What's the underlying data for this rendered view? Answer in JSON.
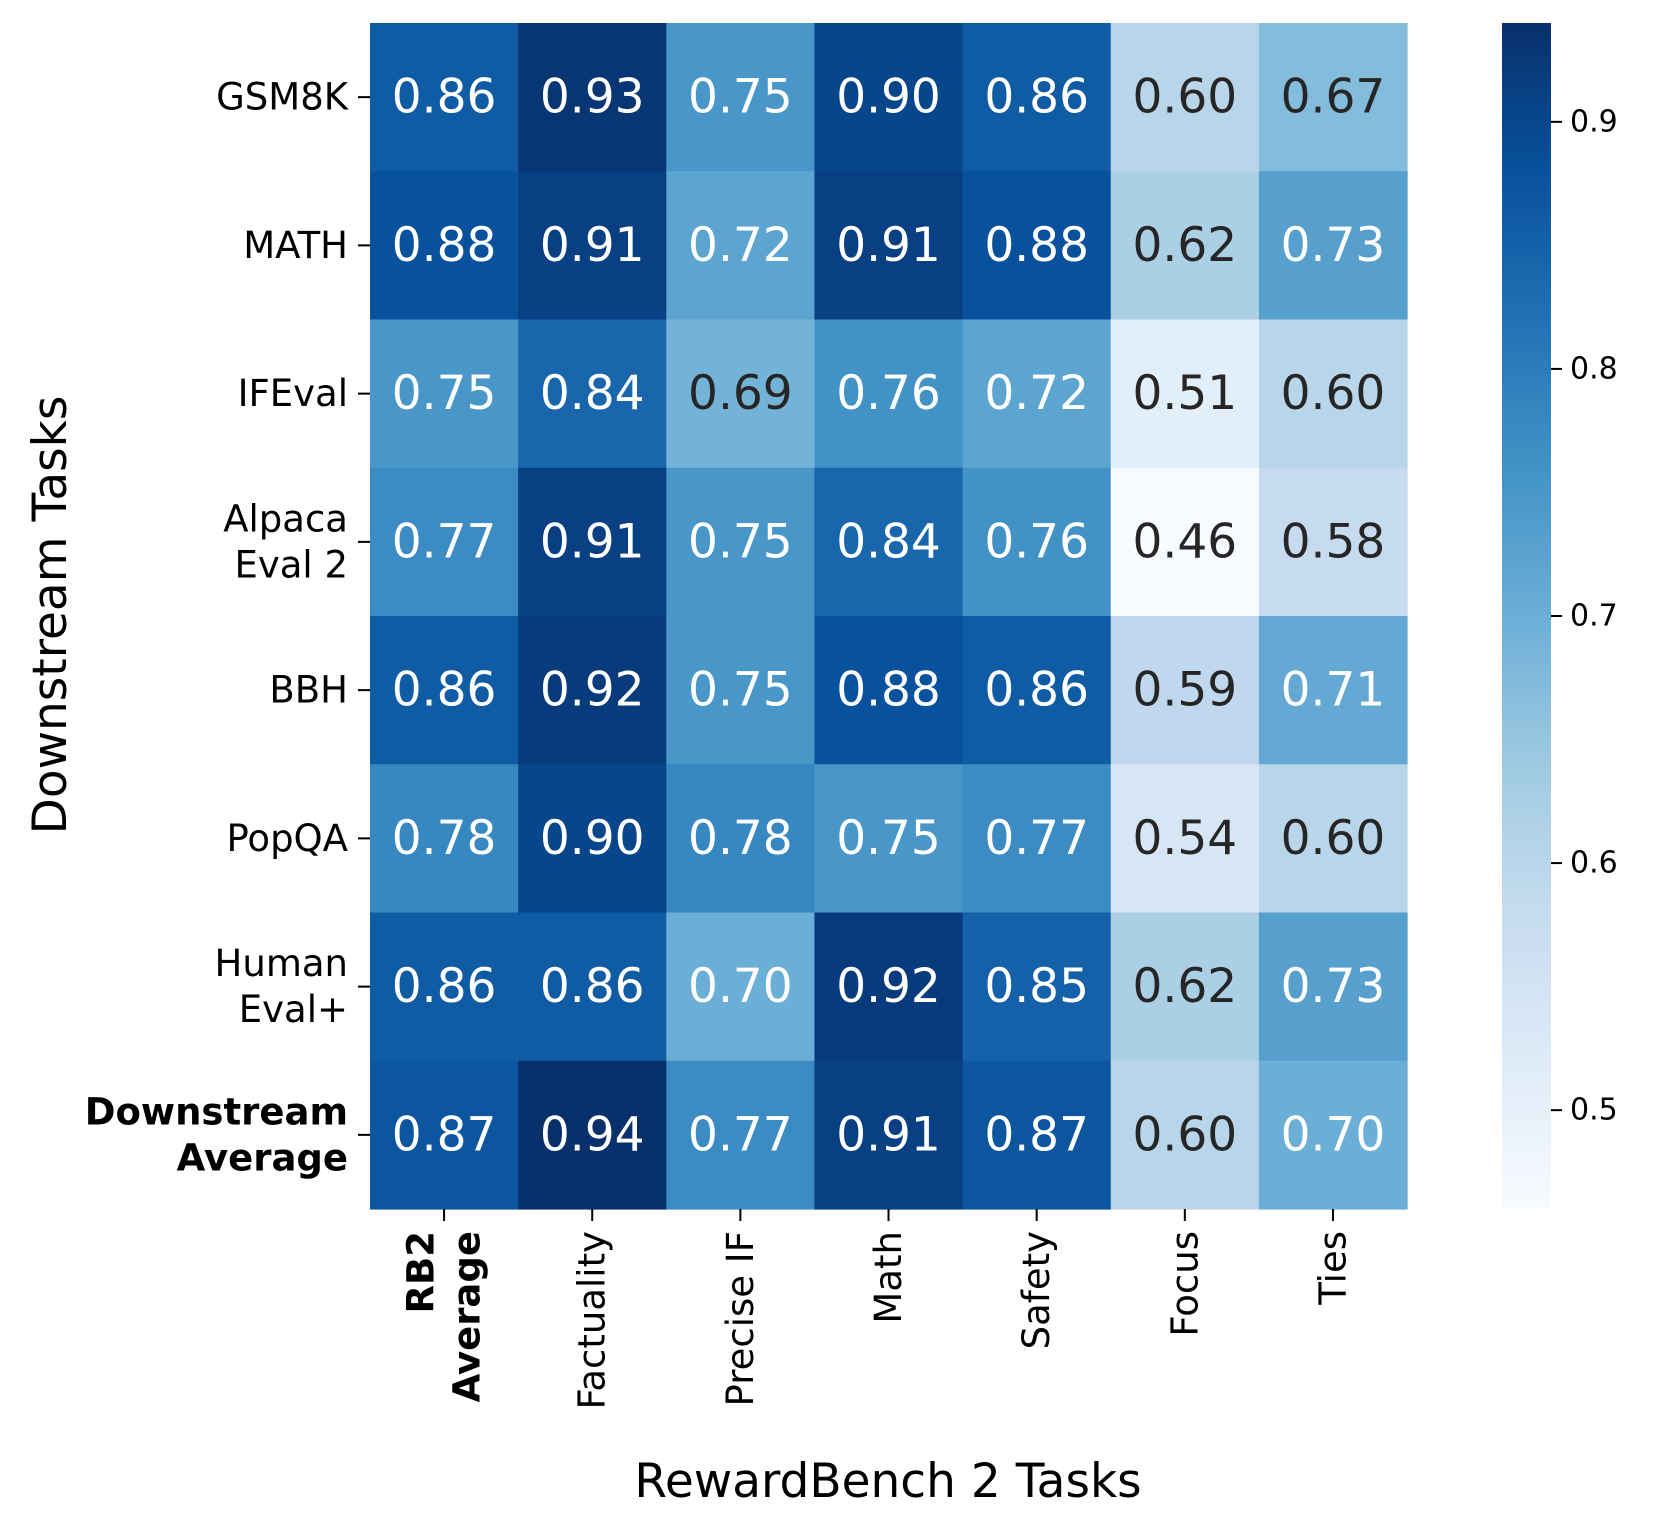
{
  "chart_data": {
    "type": "heatmap",
    "xlabel": "RewardBench 2 Tasks",
    "ylabel": "Downstream Tasks",
    "columns": [
      {
        "lines": [
          "RB2",
          "Average"
        ],
        "bold": true
      },
      {
        "lines": [
          "Factuality"
        ],
        "bold": false
      },
      {
        "lines": [
          "Precise IF"
        ],
        "bold": false
      },
      {
        "lines": [
          "Math"
        ],
        "bold": false
      },
      {
        "lines": [
          "Safety"
        ],
        "bold": false
      },
      {
        "lines": [
          "Focus"
        ],
        "bold": false
      },
      {
        "lines": [
          "Ties"
        ],
        "bold": false
      }
    ],
    "rows": [
      {
        "lines": [
          "GSM8K"
        ],
        "bold": false
      },
      {
        "lines": [
          "MATH"
        ],
        "bold": false
      },
      {
        "lines": [
          "IFEval"
        ],
        "bold": false
      },
      {
        "lines": [
          "Alpaca",
          "Eval 2"
        ],
        "bold": false
      },
      {
        "lines": [
          "BBH"
        ],
        "bold": false
      },
      {
        "lines": [
          "PopQA"
        ],
        "bold": false
      },
      {
        "lines": [
          "Human",
          "Eval+"
        ],
        "bold": false
      },
      {
        "lines": [
          "Downstream",
          "Average"
        ],
        "bold": true
      }
    ],
    "values": [
      [
        0.86,
        0.93,
        0.75,
        0.9,
        0.86,
        0.6,
        0.67
      ],
      [
        0.88,
        0.91,
        0.72,
        0.91,
        0.88,
        0.62,
        0.73
      ],
      [
        0.75,
        0.84,
        0.69,
        0.76,
        0.72,
        0.51,
        0.6
      ],
      [
        0.77,
        0.91,
        0.75,
        0.84,
        0.76,
        0.46,
        0.58
      ],
      [
        0.86,
        0.92,
        0.75,
        0.88,
        0.86,
        0.59,
        0.71
      ],
      [
        0.78,
        0.9,
        0.78,
        0.75,
        0.77,
        0.54,
        0.6
      ],
      [
        0.86,
        0.86,
        0.7,
        0.92,
        0.85,
        0.62,
        0.73
      ],
      [
        0.87,
        0.94,
        0.77,
        0.91,
        0.87,
        0.6,
        0.7
      ]
    ],
    "value_format": "0.00",
    "colormap": "Blues",
    "colorbar": {
      "range": [
        0.46,
        0.94
      ],
      "ticks": [
        "0.5",
        "0.6",
        "0.7",
        "0.8",
        "0.9"
      ],
      "tick_values": [
        0.5,
        0.6,
        0.7,
        0.8,
        0.9
      ]
    },
    "text_colors": {
      "dark_cell": "#ffffff",
      "light_cell": "#262626"
    },
    "text_threshold": 0.7
  }
}
